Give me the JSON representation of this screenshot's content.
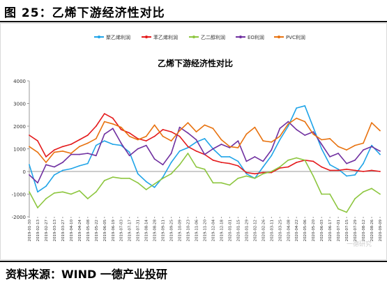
{
  "figure": {
    "heading": "图 25：乙烯下游经济性对比",
    "source": "资料来源：WIND 一德产业投研"
  },
  "chart_data": {
    "type": "line",
    "title": "乙烯下游经济性对比",
    "xlabel": "",
    "ylabel": "",
    "ylim": [
      -2000,
      4000
    ],
    "yticks": [
      -2000,
      -1000,
      0,
      1000,
      2000,
      3000,
      4000
    ],
    "grid": false,
    "legend_position": "top",
    "watermark": "一德研究",
    "x": [
      "2019-01-30",
      "2019-02-13",
      "2019-02-27",
      "2019-03-13",
      "2019-03-27",
      "2019-04-10",
      "2019-04-24",
      "2019-05-08",
      "2019-05-22",
      "2019-06-05",
      "2019-06-19",
      "2019-07-03",
      "2019-07-17",
      "2019-07-31",
      "2019-08-14",
      "2019-08-28",
      "2019-09-11",
      "2019-09-25",
      "2019-10-09",
      "2019-10-23",
      "2019-11-06",
      "2019-11-20",
      "2019-12-04",
      "2019-12-18",
      "2020-01-01",
      "2020-01-15",
      "2020-01-29",
      "2020-02-12",
      "2020-02-26",
      "2020-03-11",
      "2020-03-25",
      "2020-04-08",
      "2020-04-22",
      "2020-05-06",
      "2020-05-20",
      "2020-06-03",
      "2020-06-17",
      "2020-07-01",
      "2020-07-15",
      "2020-07-29",
      "2020-08-12",
      "2020-08-26",
      "2020-09-09"
    ],
    "series": [
      {
        "name": "聚乙烯利润",
        "color": "#1fa4e8",
        "values": [
          300,
          -900,
          -650,
          -150,
          50,
          120,
          250,
          350,
          1150,
          1350,
          1200,
          1150,
          850,
          -100,
          -450,
          -700,
          -250,
          400,
          900,
          1050,
          1300,
          1450,
          1000,
          650,
          650,
          450,
          -100,
          -300,
          200,
          700,
          1400,
          2000,
          2800,
          2900,
          1950,
          1000,
          300,
          100,
          -200,
          -150,
          350,
          1150,
          750
        ]
      },
      {
        "name": "苯乙烯利润",
        "color": "#e41a1c",
        "values": [
          1600,
          1350,
          650,
          950,
          1100,
          1200,
          1400,
          1600,
          2000,
          2550,
          2350,
          1850,
          1700,
          1450,
          1350,
          1550,
          1850,
          1750,
          1550,
          1100,
          900,
          750,
          500,
          400,
          350,
          250,
          -50,
          -100,
          -50,
          -50,
          150,
          200,
          400,
          500,
          450,
          200,
          50,
          50,
          100,
          50,
          0,
          50,
          0
        ]
      },
      {
        "name": "乙二醇利润",
        "color": "#8dc63f",
        "values": [
          -900,
          -1600,
          -1200,
          -950,
          -900,
          -1000,
          -850,
          -1200,
          -900,
          -400,
          -250,
          -300,
          -300,
          -500,
          -800,
          -550,
          -300,
          -100,
          300,
          800,
          200,
          100,
          -500,
          -500,
          -600,
          -300,
          -200,
          -300,
          -100,
          0,
          200,
          500,
          600,
          500,
          -200,
          -1000,
          -1000,
          -1650,
          -1800,
          -1200,
          -900,
          -750,
          -1000
        ]
      },
      {
        "name": "EO利润",
        "color": "#7030a0",
        "values": [
          -150,
          -500,
          300,
          200,
          400,
          750,
          750,
          800,
          700,
          1650,
          1900,
          1250,
          700,
          1000,
          1150,
          550,
          300,
          800,
          1950,
          1700,
          1400,
          750,
          1000,
          1200,
          1050,
          1350,
          450,
          650,
          450,
          950,
          1900,
          2200,
          1850,
          1600,
          1750,
          1200,
          650,
          800,
          350,
          500,
          950,
          1100,
          900
        ]
      },
      {
        "name": "PVC利润",
        "color": "#e8720f",
        "values": [
          1100,
          850,
          400,
          850,
          900,
          800,
          1100,
          1250,
          1450,
          2200,
          2100,
          1950,
          1550,
          1400,
          1550,
          2050,
          1550,
          1350,
          1800,
          2150,
          1750,
          2050,
          1900,
          1400,
          1100,
          1050,
          1650,
          1950,
          1350,
          1300,
          1550,
          2100,
          2350,
          2200,
          1650,
          1400,
          1450,
          1100,
          950,
          1150,
          1250,
          2150,
          1800
        ]
      }
    ]
  }
}
